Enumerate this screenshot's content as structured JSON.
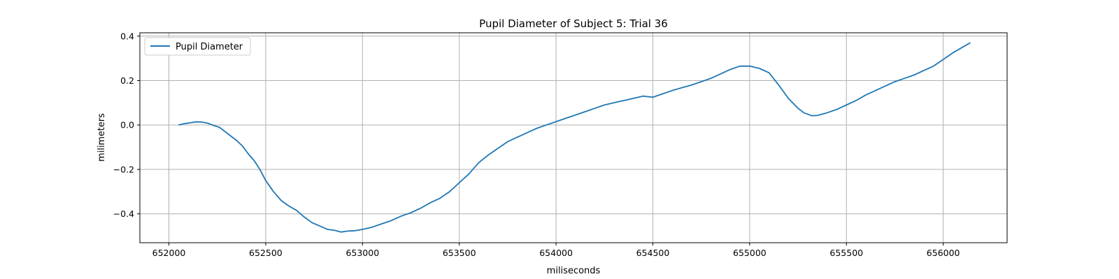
{
  "chart_data": {
    "type": "line",
    "title": "Pupil Diameter of Subject 5: Trial 36",
    "xlabel": "miliseconds",
    "ylabel": "milimeters",
    "xlim": [
      651850,
      656330
    ],
    "ylim": [
      -0.53,
      0.415
    ],
    "xticks": [
      652000,
      652500,
      653000,
      653500,
      654000,
      654500,
      655000,
      655500,
      656000
    ],
    "xtick_labels": [
      "652000",
      "652500",
      "653000",
      "653500",
      "654000",
      "654500",
      "655000",
      "655500",
      "656000"
    ],
    "yticks": [
      -0.4,
      -0.2,
      0.0,
      0.2,
      0.4
    ],
    "ytick_labels": [
      "−0.4",
      "−0.2",
      "0.0",
      "0.2",
      "0.4"
    ],
    "grid": true,
    "legend_position": "upper-left",
    "series": [
      {
        "name": "Pupil Diameter",
        "color": "#1f77b4",
        "x": [
          652050,
          652080,
          652110,
          652140,
          652170,
          652200,
          652230,
          652260,
          652290,
          652320,
          652350,
          652380,
          652410,
          652440,
          652470,
          652500,
          652540,
          652580,
          652620,
          652660,
          652700,
          652740,
          652780,
          652820,
          652860,
          652890,
          652920,
          652960,
          653000,
          653050,
          653100,
          653150,
          653200,
          653250,
          653300,
          653350,
          653400,
          653450,
          653500,
          653550,
          653600,
          653650,
          653700,
          653750,
          653800,
          653850,
          653900,
          653950,
          654000,
          654050,
          654100,
          654150,
          654200,
          654250,
          654300,
          654350,
          654400,
          654450,
          654500,
          654550,
          654600,
          654650,
          654700,
          654750,
          654800,
          654850,
          654900,
          654950,
          655000,
          655050,
          655100,
          655150,
          655200,
          655250,
          655280,
          655320,
          655350,
          655400,
          655450,
          655500,
          655550,
          655600,
          655650,
          655700,
          655750,
          655800,
          655850,
          655900,
          655950,
          656000,
          656050,
          656100,
          656140
        ],
        "values": [
          0.0,
          0.006,
          0.01,
          0.014,
          0.013,
          0.008,
          -0.002,
          -0.01,
          -0.03,
          -0.05,
          -0.07,
          -0.095,
          -0.13,
          -0.16,
          -0.2,
          -0.25,
          -0.3,
          -0.34,
          -0.365,
          -0.385,
          -0.415,
          -0.44,
          -0.455,
          -0.47,
          -0.475,
          -0.482,
          -0.478,
          -0.476,
          -0.47,
          -0.46,
          -0.445,
          -0.43,
          -0.41,
          -0.395,
          -0.375,
          -0.35,
          -0.33,
          -0.3,
          -0.26,
          -0.22,
          -0.17,
          -0.135,
          -0.105,
          -0.075,
          -0.055,
          -0.035,
          -0.015,
          0.0,
          0.015,
          0.03,
          0.045,
          0.06,
          0.075,
          0.09,
          0.1,
          0.11,
          0.12,
          0.13,
          0.125,
          0.14,
          0.155,
          0.168,
          0.18,
          0.195,
          0.21,
          0.23,
          0.25,
          0.265,
          0.265,
          0.255,
          0.235,
          0.18,
          0.12,
          0.075,
          0.055,
          0.042,
          0.043,
          0.055,
          0.07,
          0.09,
          0.11,
          0.135,
          0.155,
          0.175,
          0.195,
          0.21,
          0.225,
          0.245,
          0.265,
          0.295,
          0.325,
          0.35,
          0.37
        ]
      }
    ]
  }
}
